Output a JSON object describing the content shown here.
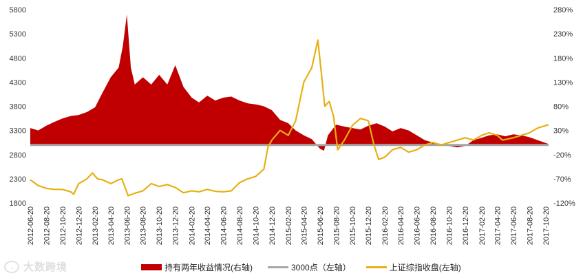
{
  "chart_data": {
    "type": "area+line",
    "title": "",
    "xlabel": "",
    "ylabel": "",
    "left_axis": {
      "ylim": [
        1800,
        5800
      ],
      "ticks": [
        "5800",
        "5300",
        "4800",
        "4300",
        "3800",
        "3300",
        "2800",
        "2300",
        "1800"
      ]
    },
    "right_axis": {
      "ylim": [
        -120,
        280
      ],
      "ticks": [
        "280%",
        "230%",
        "180%",
        "130%",
        "80%",
        "30%",
        "-20%",
        "-70%",
        "-120%"
      ]
    },
    "x_ticks": [
      "2012-06-20",
      "2012-08-20",
      "2012-10-20",
      "2012-12-20",
      "2013-02-20",
      "2013-04-20",
      "2013-06-20",
      "2013-08-20",
      "2013-10-20",
      "2013-12-20",
      "2014-02-20",
      "2014-04-20",
      "2014-06-20",
      "2014-08-20",
      "2014-10-20",
      "2014-12-20",
      "2015-02-20",
      "2015-04-20",
      "2015-06-20",
      "2015-08-20",
      "2015-10-20",
      "2015-12-20",
      "2016-02-20",
      "2016-04-20",
      "2016-06-20",
      "2016-08-20",
      "2016-10-20",
      "2016-12-20",
      "2017-02-20",
      "2017-04-20",
      "2017-06-20",
      "2017-08-20",
      "2017-10-20"
    ],
    "grid": false,
    "legend_position": "bottom",
    "series": [
      {
        "name": "持有两年收益情况(右轴)",
        "axis": "right",
        "kind": "area",
        "color": "#c00000",
        "x": [
          "2012-06-20",
          "2012-07-20",
          "2012-08-20",
          "2012-09-20",
          "2012-10-20",
          "2012-11-20",
          "2012-12-20",
          "2013-01-20",
          "2013-02-20",
          "2013-03-20",
          "2013-04-20",
          "2013-05-20",
          "2013-06-05",
          "2013-06-20",
          "2013-07-05",
          "2013-07-20",
          "2013-08-20",
          "2013-09-20",
          "2013-10-20",
          "2013-11-20",
          "2013-12-05",
          "2013-12-20",
          "2014-01-20",
          "2014-02-20",
          "2014-03-20",
          "2014-04-20",
          "2014-05-20",
          "2014-06-20",
          "2014-07-20",
          "2014-08-20",
          "2014-09-20",
          "2014-10-20",
          "2014-11-20",
          "2014-12-20",
          "2015-01-20",
          "2015-02-20",
          "2015-03-20",
          "2015-04-20",
          "2015-05-20",
          "2015-06-20",
          "2015-07-05",
          "2015-07-20",
          "2015-08-20",
          "2015-09-20",
          "2015-10-20",
          "2015-11-20",
          "2015-12-20",
          "2016-01-20",
          "2016-02-20",
          "2016-03-20",
          "2016-04-20",
          "2016-05-20",
          "2016-06-20",
          "2016-07-20",
          "2016-08-20",
          "2016-09-20",
          "2016-10-20",
          "2016-11-20",
          "2016-12-20",
          "2017-01-20",
          "2017-02-20",
          "2017-03-20",
          "2017-04-20",
          "2017-05-20",
          "2017-06-20",
          "2017-07-20",
          "2017-08-20",
          "2017-09-20",
          "2017-10-20",
          "2017-10-31"
        ],
        "values": [
          35,
          30,
          40,
          48,
          55,
          60,
          62,
          68,
          78,
          108,
          140,
          160,
          205,
          270,
          160,
          125,
          140,
          125,
          145,
          125,
          145,
          165,
          120,
          98,
          88,
          102,
          92,
          98,
          100,
          92,
          86,
          84,
          80,
          72,
          52,
          45,
          30,
          20,
          12,
          -8,
          -12,
          20,
          42,
          38,
          35,
          32,
          40,
          45,
          38,
          28,
          35,
          30,
          20,
          10,
          5,
          2,
          -2,
          -5,
          -2,
          10,
          15,
          20,
          22,
          18,
          22,
          20,
          16,
          10,
          4,
          2
        ]
      },
      {
        "name": "3000点（左轴）",
        "axis": "left",
        "kind": "line",
        "color": "#a6a6a6",
        "x": [
          "2012-06-20",
          "2017-10-31"
        ],
        "values": [
          3000,
          3000
        ]
      },
      {
        "name": "上证综指收盘(左轴)",
        "axis": "left",
        "kind": "line",
        "color": "#e6b012",
        "x": [
          "2012-06-20",
          "2012-07-20",
          "2012-08-20",
          "2012-09-20",
          "2012-10-20",
          "2012-11-20",
          "2012-12-01",
          "2012-12-20",
          "2013-01-20",
          "2013-02-10",
          "2013-03-01",
          "2013-03-20",
          "2013-04-20",
          "2013-05-20",
          "2013-06-01",
          "2013-06-25",
          "2013-07-20",
          "2013-08-20",
          "2013-09-20",
          "2013-10-20",
          "2013-11-20",
          "2013-12-20",
          "2014-01-20",
          "2014-02-20",
          "2014-03-20",
          "2014-04-20",
          "2014-05-20",
          "2014-06-20",
          "2014-07-20",
          "2014-08-20",
          "2014-09-20",
          "2014-10-20",
          "2014-11-20",
          "2014-12-05",
          "2014-12-20",
          "2015-01-20",
          "2015-02-20",
          "2015-03-20",
          "2015-04-20",
          "2015-05-20",
          "2015-06-12",
          "2015-06-25",
          "2015-07-08",
          "2015-07-25",
          "2015-08-10",
          "2015-08-26",
          "2015-09-20",
          "2015-10-20",
          "2015-11-20",
          "2015-12-20",
          "2016-01-10",
          "2016-01-28",
          "2016-02-20",
          "2016-03-20",
          "2016-04-20",
          "2016-05-20",
          "2016-06-20",
          "2016-07-20",
          "2016-08-20",
          "2016-09-20",
          "2016-10-20",
          "2016-11-20",
          "2016-12-20",
          "2017-01-20",
          "2017-02-20",
          "2017-03-20",
          "2017-04-20",
          "2017-05-10",
          "2017-06-20",
          "2017-07-20",
          "2017-08-20",
          "2017-09-20",
          "2017-10-20",
          "2017-10-31"
        ],
        "values": [
          2280,
          2160,
          2100,
          2080,
          2080,
          2030,
          1980,
          2200,
          2300,
          2420,
          2300,
          2280,
          2200,
          2280,
          2300,
          1950,
          2000,
          2050,
          2200,
          2140,
          2180,
          2120,
          2010,
          2050,
          2030,
          2080,
          2040,
          2030,
          2050,
          2220,
          2300,
          2350,
          2500,
          2950,
          3100,
          3300,
          3200,
          3500,
          4300,
          4600,
          5170,
          4500,
          3800,
          3900,
          3600,
          2900,
          3100,
          3400,
          3550,
          3500,
          3000,
          2700,
          2750,
          2900,
          2950,
          2850,
          2900,
          3000,
          3050,
          3000,
          3050,
          3100,
          3150,
          3100,
          3200,
          3250,
          3200,
          3100,
          3150,
          3200,
          3250,
          3350,
          3400,
          3420
        ]
      }
    ]
  },
  "legend": {
    "items": [
      {
        "label": "持有两年收益情况(右轴)",
        "color": "#c00000",
        "style": "block"
      },
      {
        "label": "3000点（左轴）",
        "color": "#a6a6a6",
        "style": "line"
      },
      {
        "label": "上证综指收盘(左轴)",
        "color": "#e6b012",
        "style": "line"
      }
    ]
  },
  "watermark": {
    "text": "大数跨境",
    "icon": "logo-swirl-icon"
  }
}
